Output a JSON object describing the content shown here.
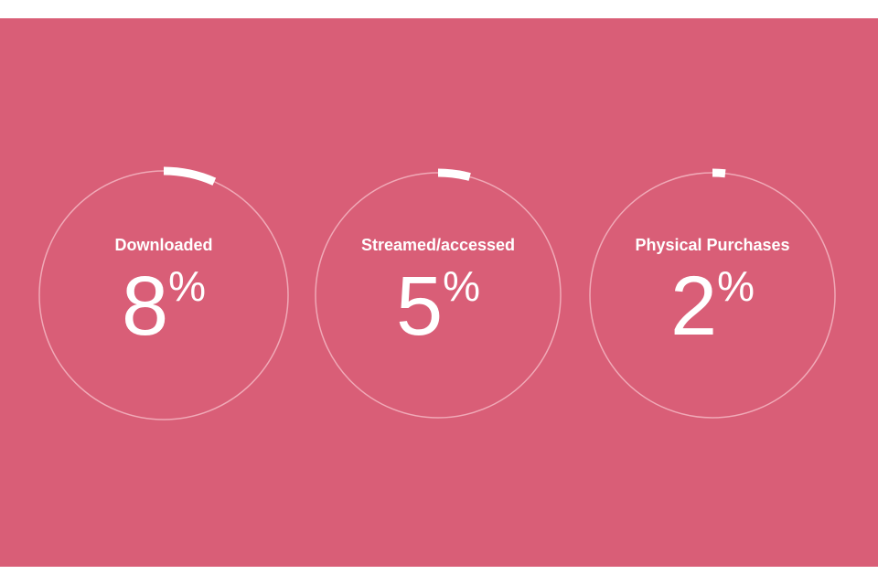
{
  "colors": {
    "background": "#d95e77",
    "ring": "#f0a9b7",
    "arc": "#ffffff"
  },
  "chart_data": {
    "type": "gauge",
    "unit": "%",
    "items": [
      {
        "label": "Downloaded",
        "value": 8,
        "display": "8"
      },
      {
        "label": "Streamed/accessed",
        "value": 5,
        "display": "5"
      },
      {
        "label": "Physical Purchases",
        "value": 2,
        "display": "2"
      }
    ]
  }
}
